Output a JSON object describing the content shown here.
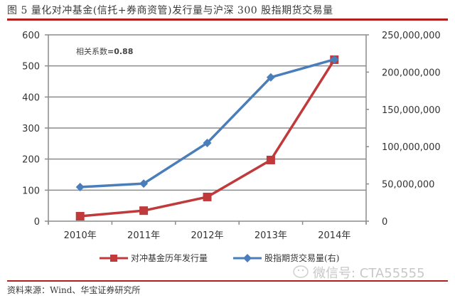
{
  "header": {
    "title": "图 5   量化对冲基金(信托+券商资管)发行量与沪深 300 股指期货交易量"
  },
  "annotation": {
    "label": "相关系数",
    "value": "=0.88"
  },
  "legend": {
    "series0": "对冲基金历年发行量",
    "series1": "股指期货交易量(右)"
  },
  "footer": {
    "source": "资料来源：Wind、华宝证券研究所",
    "watermark": "微信号: CTA55555"
  },
  "colors": {
    "series0": "#c0393b",
    "series1": "#4a7ebb",
    "grid": "#8c8c8c",
    "accent_rule": "#b02020"
  },
  "chart_data": {
    "type": "line",
    "title": "量化对冲基金(信托+券商资管)发行量与沪深 300 股指期货交易量",
    "categories": [
      "2010年",
      "2011年",
      "2012年",
      "2013年",
      "2014年"
    ],
    "series": [
      {
        "name": "对冲基金历年发行量",
        "axis": "left",
        "marker": "square",
        "color": "#c0393b",
        "values": [
          16,
          34,
          78,
          197,
          520
        ]
      },
      {
        "name": "股指期货交易量(右)",
        "axis": "right",
        "marker": "diamond",
        "color": "#4a7ebb",
        "values": [
          45800000,
          50400000,
          105000000,
          193000000,
          217000000
        ]
      }
    ],
    "yleft": {
      "ylim": [
        0,
        600
      ],
      "ticks": [
        "0",
        "100",
        "200",
        "300",
        "400",
        "500",
        "600"
      ]
    },
    "yright": {
      "ylim": [
        0,
        250000000
      ],
      "ticks": [
        "0",
        "50,000,000",
        "100,000,000",
        "150,000,000",
        "200,000,000",
        "250,000,000"
      ]
    },
    "annotations": [
      "相关系数=0.88"
    ],
    "grid": true,
    "legend_position": "bottom"
  }
}
